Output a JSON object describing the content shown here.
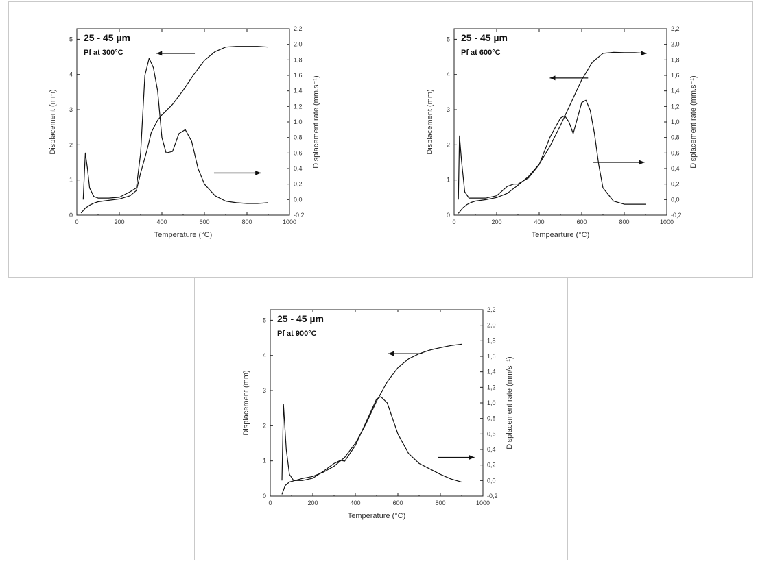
{
  "chart_data": [
    {
      "type": "line",
      "annotation_line1": "25 - 45 µm",
      "annotation_line2": "Pf at 300°C",
      "xlabel": "Temperature (°C)",
      "ylabel": "Displacement (mm)",
      "y2label": "Displacement rate (mm.s⁻¹)",
      "xlim": [
        0,
        1000
      ],
      "ylim": [
        0,
        5.3
      ],
      "y2lim": [
        -0.2,
        2.2
      ],
      "xticks": [
        0,
        200,
        400,
        600,
        800,
        1000
      ],
      "yticks": [
        0,
        1,
        2,
        3,
        4,
        5
      ],
      "y2ticks": [
        "-0,2",
        "0,0",
        "0,2",
        "0,4",
        "0,6",
        "0,8",
        "1,0",
        "1,2",
        "1,4",
        "1,6",
        "1,8",
        "2,0",
        "2,2"
      ],
      "arrows": [
        {
          "points_to": "left",
          "from": [
            555,
            4.6
          ],
          "to": [
            375,
            4.6
          ]
        },
        {
          "points_to": "right",
          "from": [
            645,
            1.2
          ],
          "to": [
            865,
            1.2
          ]
        }
      ],
      "series": [
        {
          "axis": "left",
          "x": [
            20,
            40,
            60,
            80,
            100,
            150,
            200,
            250,
            280,
            300,
            330,
            350,
            380,
            400,
            450,
            500,
            550,
            600,
            650,
            700,
            750,
            800,
            850,
            900
          ],
          "y": [
            0.06,
            0.2,
            0.28,
            0.34,
            0.38,
            0.42,
            0.46,
            0.55,
            0.7,
            1.2,
            1.85,
            2.35,
            2.7,
            2.85,
            3.15,
            3.55,
            4.0,
            4.4,
            4.65,
            4.78,
            4.8,
            4.8,
            4.8,
            4.78
          ]
        },
        {
          "axis": "right",
          "x": [
            30,
            40,
            50,
            60,
            80,
            100,
            150,
            200,
            250,
            280,
            300,
            320,
            340,
            360,
            380,
            400,
            420,
            450,
            480,
            510,
            540,
            570,
            600,
            650,
            700,
            750,
            800,
            850,
            900
          ],
          "y": [
            0.0,
            0.6,
            0.4,
            0.15,
            0.04,
            0.02,
            0.02,
            0.03,
            0.1,
            0.15,
            0.6,
            1.6,
            1.82,
            1.7,
            1.4,
            0.8,
            0.6,
            0.62,
            0.85,
            0.9,
            0.75,
            0.4,
            0.2,
            0.05,
            -0.02,
            -0.04,
            -0.05,
            -0.05,
            -0.04
          ]
        }
      ]
    },
    {
      "type": "line",
      "annotation_line1": "25 - 45 µm",
      "annotation_line2": "Pf at 600°C",
      "xlabel": "Tempearture (°C)",
      "ylabel": "Displacement (mm)",
      "y2label": "Displacement rate (mm.s⁻¹)",
      "xlim": [
        0,
        1000
      ],
      "ylim": [
        0,
        5.3
      ],
      "y2lim": [
        -0.2,
        2.2
      ],
      "xticks": [
        0,
        200,
        400,
        600,
        800,
        1000
      ],
      "yticks": [
        0,
        1,
        2,
        3,
        4,
        5
      ],
      "y2ticks": [
        "-0,2",
        "0,0",
        "0,2",
        "0,4",
        "0,6",
        "0,8",
        "1,0",
        "1,2",
        "1,4",
        "1,6",
        "1,8",
        "2,0",
        "2,2"
      ],
      "arrows": [
        {
          "points_to": "left",
          "from": [
            630,
            3.9
          ],
          "to": [
            450,
            3.9
          ]
        },
        {
          "points_to": "right",
          "from": [
            655,
            1.5
          ],
          "to": [
            895,
            1.5
          ]
        },
        {
          "points_to": "right",
          "from": [
            880,
            4.6
          ],
          "to": [
            905,
            4.6
          ]
        }
      ],
      "series": [
        {
          "axis": "left",
          "x": [
            20,
            40,
            60,
            80,
            100,
            150,
            200,
            250,
            300,
            350,
            400,
            450,
            500,
            550,
            600,
            650,
            700,
            750,
            800,
            850,
            900
          ],
          "y": [
            0.05,
            0.2,
            0.3,
            0.36,
            0.4,
            0.44,
            0.5,
            0.62,
            0.85,
            1.1,
            1.45,
            1.95,
            2.55,
            3.2,
            3.85,
            4.35,
            4.6,
            4.63,
            4.62,
            4.62,
            4.6
          ]
        },
        {
          "axis": "right",
          "x": [
            20,
            25,
            35,
            50,
            70,
            100,
            150,
            200,
            250,
            280,
            300,
            350,
            400,
            450,
            500,
            520,
            540,
            560,
            580,
            600,
            620,
            640,
            660,
            680,
            700,
            750,
            800,
            850,
            900
          ],
          "y": [
            0.0,
            0.82,
            0.5,
            0.1,
            0.02,
            0.02,
            0.02,
            0.05,
            0.17,
            0.2,
            0.2,
            0.28,
            0.45,
            0.8,
            1.05,
            1.08,
            1.0,
            0.85,
            1.05,
            1.25,
            1.28,
            1.15,
            0.85,
            0.45,
            0.15,
            -0.02,
            -0.06,
            -0.06,
            -0.06
          ]
        }
      ]
    },
    {
      "type": "line",
      "annotation_line1": "25 - 45 µm",
      "annotation_line2": "Pf at 900°C",
      "xlabel": "Temperature (°C)",
      "ylabel": "Displacement (mm)",
      "y2label": "Displacement rate (mm/s⁻¹)",
      "xlim": [
        0,
        1000
      ],
      "ylim": [
        0,
        5.3
      ],
      "y2lim": [
        -0.2,
        2.2
      ],
      "xticks": [
        0,
        200,
        400,
        600,
        800,
        1000
      ],
      "yticks": [
        0,
        1,
        2,
        3,
        4,
        5
      ],
      "y2ticks": [
        "-0,2",
        "0,0",
        "0,2",
        "0,4",
        "0,6",
        "0,8",
        "1,0",
        "1,2",
        "1,4",
        "1,6",
        "1,8",
        "2,0",
        "2,2"
      ],
      "arrows": [
        {
          "points_to": "left",
          "from": [
            715,
            4.05
          ],
          "to": [
            555,
            4.05
          ]
        },
        {
          "points_to": "right",
          "from": [
            790,
            1.1
          ],
          "to": [
            960,
            1.1
          ]
        }
      ],
      "series": [
        {
          "axis": "left",
          "x": [
            55,
            70,
            90,
            120,
            150,
            200,
            250,
            300,
            350,
            400,
            450,
            500,
            550,
            600,
            650,
            700,
            750,
            800,
            850,
            900
          ],
          "y": [
            0.05,
            0.3,
            0.4,
            0.45,
            0.5,
            0.56,
            0.68,
            0.85,
            1.1,
            1.5,
            2.05,
            2.7,
            3.25,
            3.65,
            3.9,
            4.05,
            4.15,
            4.22,
            4.28,
            4.32
          ]
        },
        {
          "axis": "right",
          "x": [
            55,
            62,
            75,
            90,
            110,
            150,
            200,
            250,
            300,
            330,
            350,
            400,
            450,
            500,
            520,
            550,
            600,
            650,
            700,
            750,
            800,
            850,
            900
          ],
          "y": [
            0.0,
            0.98,
            0.4,
            0.08,
            0.0,
            0.0,
            0.03,
            0.12,
            0.22,
            0.26,
            0.25,
            0.45,
            0.75,
            1.05,
            1.08,
            1.0,
            0.6,
            0.35,
            0.22,
            0.15,
            0.08,
            0.02,
            -0.02
          ]
        }
      ]
    }
  ]
}
